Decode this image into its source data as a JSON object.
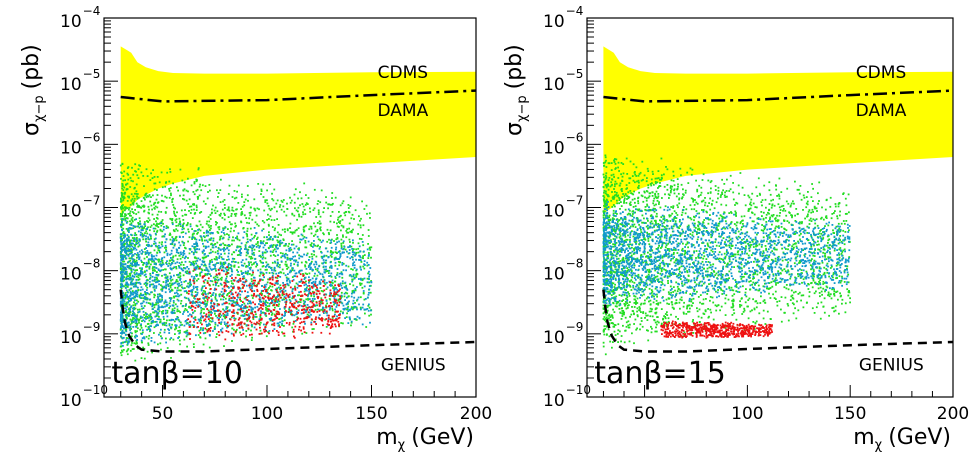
{
  "chart_data": [
    {
      "type": "scatter",
      "x_label_main": "m",
      "x_label_sub": "χ",
      "x_label_unit": "(GeV)",
      "y_label_main": "σ",
      "y_label_sub": "χ−p",
      "y_label_unit": "(pb)",
      "xlim": [
        22,
        200
      ],
      "ylim_log10": [
        -10,
        -4
      ],
      "y_scale": "log",
      "x_ticks": [
        {
          "v": 50,
          "t": "50"
        },
        {
          "v": 100,
          "t": "100"
        },
        {
          "v": 150,
          "t": "150"
        },
        {
          "v": 200,
          "t": "200"
        }
      ],
      "y_ticks": [
        {
          "exp": -4,
          "base": "10",
          "sup": "−4"
        },
        {
          "exp": -5,
          "base": "10",
          "sup": "−5"
        },
        {
          "exp": -6,
          "base": "10",
          "sup": "−6"
        },
        {
          "exp": -7,
          "base": "10",
          "sup": "−7"
        },
        {
          "exp": -8,
          "base": "10",
          "sup": "−8"
        },
        {
          "exp": -9,
          "base": "10",
          "sup": "−9"
        },
        {
          "exp": -10,
          "base": "10",
          "sup": "−10"
        }
      ],
      "annotations": {
        "cdms": "CDMS",
        "dama": "DAMA",
        "genius": "GENIUS",
        "tanbeta": "tanβ=10"
      },
      "colors": {
        "dama_region": "#ffff00",
        "green": "#22dd22",
        "blue": "#1199cc",
        "red": "#ee1111",
        "line": "#000000"
      },
      "dama_region": {
        "x": [
          30,
          35,
          38,
          42,
          48,
          55,
          70,
          100,
          150,
          200
        ],
        "upper_log10": [
          -4.45,
          -4.55,
          -4.7,
          -4.78,
          -4.84,
          -4.87,
          -4.88,
          -4.88,
          -4.86,
          -4.85
        ],
        "lower_log10": [
          -7.1,
          -6.98,
          -6.88,
          -6.8,
          -6.7,
          -6.62,
          -6.5,
          -6.4,
          -6.3,
          -6.2
        ]
      },
      "cdms_line": {
        "x": [
          30,
          50,
          100,
          150,
          200
        ],
        "log10": [
          -5.25,
          -5.32,
          -5.3,
          -5.22,
          -5.15
        ]
      },
      "genius_line": {
        "x": [
          30,
          31,
          32,
          34,
          37,
          40,
          50,
          70,
          100,
          150,
          200
        ],
        "log10": [
          -8.3,
          -8.6,
          -8.82,
          -9.03,
          -9.18,
          -9.25,
          -9.28,
          -9.28,
          -9.24,
          -9.18,
          -9.13
        ]
      },
      "scatter_series": [
        {
          "color": "green",
          "region": {
            "x_min": 30,
            "x_max": 150,
            "y_lo": -9.55,
            "y_hi": -6.15
          }
        },
        {
          "color": "blue",
          "region": {
            "x_min": 30,
            "x_max": 150,
            "y_lo": -9.25,
            "y_hi": -7.1
          }
        },
        {
          "color": "red",
          "region": {
            "x_min": 62,
            "x_max": 135,
            "y_lo": -9.25,
            "y_hi": -7.85
          }
        }
      ]
    },
    {
      "type": "scatter",
      "x_label_main": "m",
      "x_label_sub": "χ",
      "x_label_unit": "(GeV)",
      "y_label_main": "σ",
      "y_label_sub": "χ−p",
      "y_label_unit": "(pb)",
      "xlim": [
        22,
        200
      ],
      "ylim_log10": [
        -10,
        -4
      ],
      "y_scale": "log",
      "x_ticks": [
        {
          "v": 50,
          "t": "50"
        },
        {
          "v": 100,
          "t": "100"
        },
        {
          "v": 150,
          "t": "150"
        },
        {
          "v": 200,
          "t": "200"
        }
      ],
      "y_ticks": [
        {
          "exp": -4,
          "base": "10",
          "sup": "−4"
        },
        {
          "exp": -5,
          "base": "10",
          "sup": "−5"
        },
        {
          "exp": -6,
          "base": "10",
          "sup": "−6"
        },
        {
          "exp": -7,
          "base": "10",
          "sup": "−7"
        },
        {
          "exp": -8,
          "base": "10",
          "sup": "−8"
        },
        {
          "exp": -9,
          "base": "10",
          "sup": "−9"
        },
        {
          "exp": -10,
          "base": "10",
          "sup": "−10"
        }
      ],
      "annotations": {
        "cdms": "CDMS",
        "dama": "DAMA",
        "genius": "GENIUS",
        "tanbeta": "tanβ=15"
      },
      "colors": {
        "dama_region": "#ffff00",
        "green": "#22dd22",
        "blue": "#1199cc",
        "red": "#ee1111",
        "line": "#000000"
      },
      "dama_region": {
        "x": [
          30,
          35,
          38,
          42,
          48,
          55,
          70,
          100,
          150,
          200
        ],
        "upper_log10": [
          -4.45,
          -4.55,
          -4.7,
          -4.78,
          -4.84,
          -4.87,
          -4.88,
          -4.88,
          -4.86,
          -4.85
        ],
        "lower_log10": [
          -7.1,
          -6.98,
          -6.88,
          -6.8,
          -6.7,
          -6.62,
          -6.5,
          -6.4,
          -6.3,
          -6.2
        ]
      },
      "cdms_line": {
        "x": [
          30,
          50,
          100,
          150,
          200
        ],
        "log10": [
          -5.25,
          -5.32,
          -5.3,
          -5.22,
          -5.15
        ]
      },
      "genius_line": {
        "x": [
          30,
          31,
          32,
          34,
          37,
          40,
          50,
          70,
          100,
          150,
          200
        ],
        "log10": [
          -8.3,
          -8.6,
          -8.82,
          -9.03,
          -9.18,
          -9.25,
          -9.28,
          -9.28,
          -9.24,
          -9.18,
          -9.13
        ]
      },
      "scatter_series": [
        {
          "color": "green",
          "region": {
            "x_min": 30,
            "x_max": 150,
            "y_lo": -9.35,
            "y_hi": -6.05
          }
        },
        {
          "color": "blue",
          "region": {
            "x_min": 30,
            "x_max": 150,
            "y_lo": -8.6,
            "y_hi": -6.9
          }
        },
        {
          "color": "red",
          "region": {
            "x_min": 58,
            "x_max": 112,
            "y_lo": -9.1,
            "y_hi": -8.78
          }
        }
      ]
    }
  ]
}
